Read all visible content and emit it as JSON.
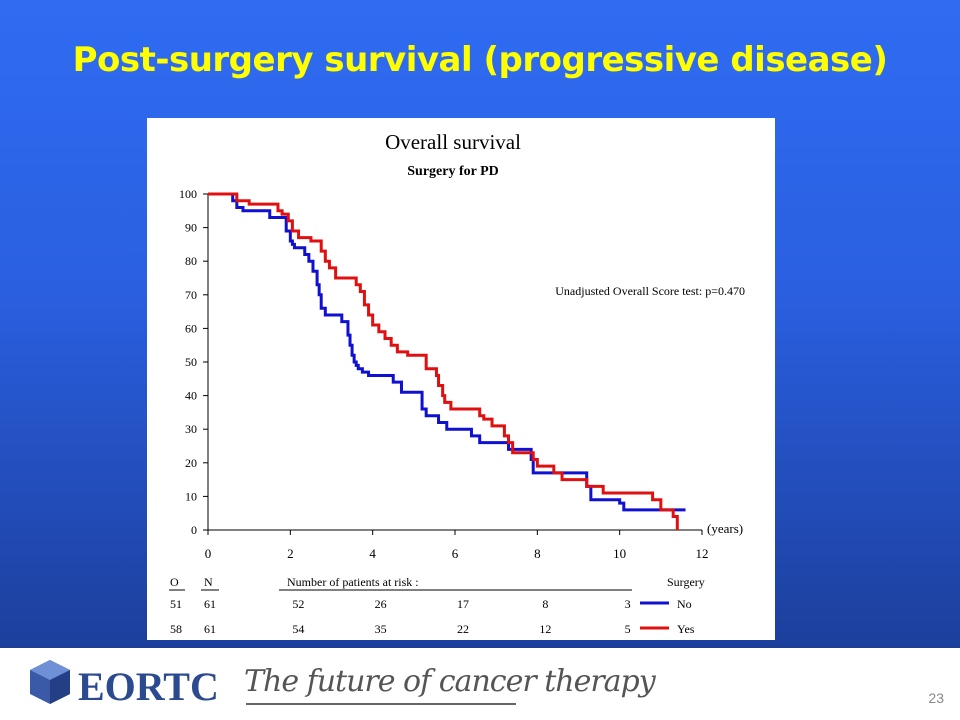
{
  "slide": {
    "title": "Post-surgery survival (progressive disease)",
    "page_number": "23",
    "footer": {
      "logo_text": "EORTC",
      "tagline": "The future of cancer therapy"
    },
    "colors": {
      "background": "#2a5fe0",
      "title": "#ffff00",
      "logo_blue": "#2b4a8f"
    }
  },
  "chart_data": {
    "type": "line",
    "title": "Overall survival",
    "subtitle": "Surgery for PD",
    "xlabel": "(years)",
    "ylabel": "",
    "xlim": [
      0,
      12
    ],
    "ylim": [
      0,
      100
    ],
    "x_ticks": [
      0,
      2,
      4,
      6,
      8,
      10,
      12
    ],
    "y_ticks": [
      0,
      10,
      20,
      30,
      40,
      50,
      60,
      70,
      80,
      90,
      100
    ],
    "annotation": "Unadjusted Overall Score test: p=0.470",
    "series": [
      {
        "name": "No",
        "color": "#1010d0",
        "x": [
          0,
          0.5,
          0.6,
          0.7,
          0.85,
          1.5,
          1.9,
          2.0,
          2.05,
          2.1,
          2.35,
          2.45,
          2.55,
          2.65,
          2.7,
          2.75,
          2.85,
          3.25,
          3.4,
          3.45,
          3.5,
          3.55,
          3.6,
          3.65,
          3.75,
          3.9,
          4.5,
          4.7,
          5.2,
          5.3,
          5.6,
          5.8,
          6.4,
          6.6,
          7.3,
          7.85,
          7.9,
          9.2,
          9.3,
          10.0,
          10.1,
          11.6
        ],
        "y": [
          100,
          100,
          98,
          96,
          95,
          93,
          89,
          86,
          85,
          84,
          82,
          80,
          77,
          73,
          70,
          66,
          64,
          62,
          58,
          55,
          52,
          50,
          49,
          48,
          47,
          46,
          44,
          41,
          36,
          34,
          32,
          30,
          28,
          26,
          24,
          21,
          17,
          13,
          9,
          8,
          6,
          6
        ]
      },
      {
        "name": "Yes",
        "color": "#e01010",
        "x": [
          0,
          0.7,
          1.0,
          1.7,
          1.8,
          1.95,
          2.05,
          2.2,
          2.5,
          2.75,
          2.85,
          2.95,
          3.1,
          3.6,
          3.7,
          3.8,
          3.9,
          4.0,
          4.15,
          4.3,
          4.45,
          4.6,
          4.85,
          5.3,
          5.55,
          5.6,
          5.7,
          5.75,
          5.9,
          6.6,
          6.7,
          6.9,
          7.2,
          7.3,
          7.4,
          7.9,
          8.0,
          8.4,
          8.6,
          9.2,
          9.6,
          10.8,
          11.0,
          11.3,
          11.4
        ],
        "y": [
          100,
          98,
          97,
          95,
          94,
          92,
          89,
          87,
          86,
          83,
          80,
          78,
          75,
          73,
          71,
          67,
          64,
          61,
          59,
          57,
          55,
          53,
          52,
          48,
          46,
          43,
          40,
          38,
          36,
          34,
          33,
          31,
          28,
          26,
          23,
          21,
          19,
          17,
          15,
          13,
          11,
          9,
          6,
          4,
          0
        ]
      }
    ],
    "risk_table": {
      "header_o": "O",
      "header_n": "N",
      "header_risk": "Number of patients at risk :",
      "header_group": "Surgery",
      "rows": [
        {
          "o": "51",
          "n": "61",
          "at_risk": [
            "52",
            "26",
            "17",
            "8",
            "3"
          ],
          "group": "No",
          "color": "#1010d0"
        },
        {
          "o": "58",
          "n": "61",
          "at_risk": [
            "54",
            "35",
            "22",
            "12",
            "5"
          ],
          "group": "Yes",
          "color": "#e01010"
        }
      ]
    }
  }
}
